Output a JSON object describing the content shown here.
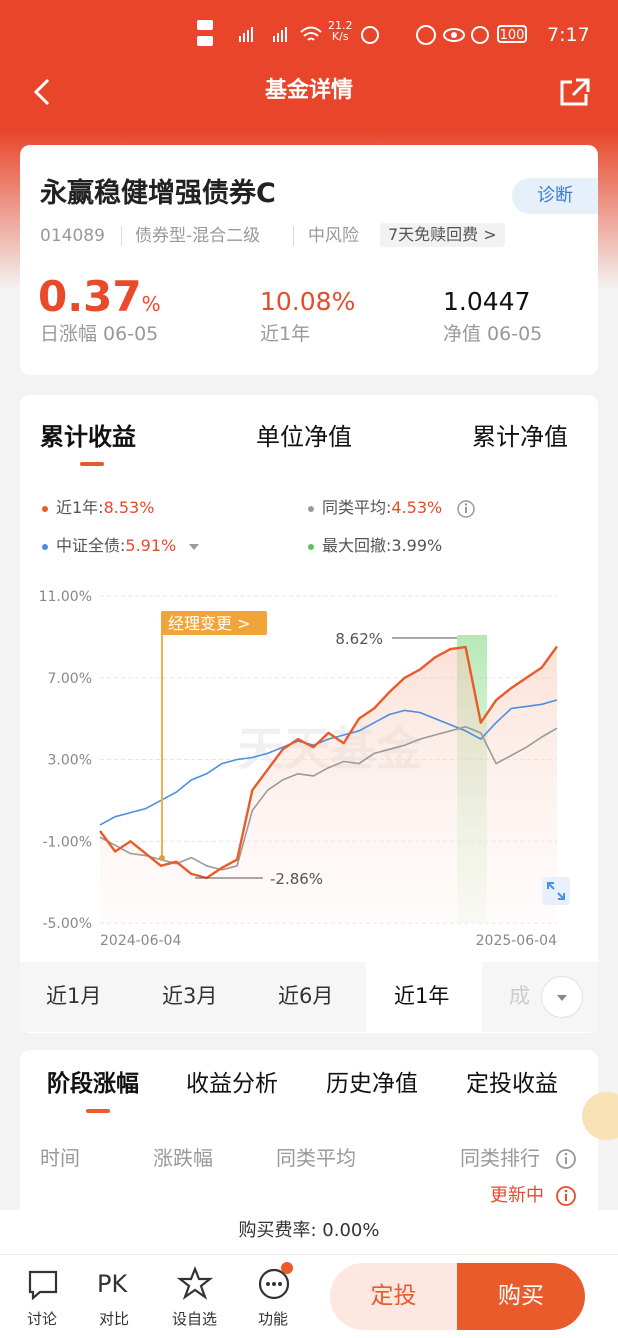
{
  "status_bar": {
    "speed": "21.2",
    "speed_unit": "K/s",
    "battery": "100",
    "time": "7:17"
  },
  "header": {
    "title": "基金详情"
  },
  "fund": {
    "name": "永赢稳健增强债券C",
    "diagnose": "诊断",
    "code": "014089",
    "category": "债券型-混合二级",
    "risk": "中风险",
    "fee_tag": "7天免赎回费 >",
    "daily_change": "0.37",
    "daily_change_unit": "%",
    "daily_label": "日涨幅 06-05",
    "year_return": "10.08%",
    "year_label": "近1年",
    "nav": "1.0447",
    "nav_label": "净值 06-05"
  },
  "chart_tabs": [
    "累计收益",
    "单位净值",
    "累计净值"
  ],
  "chart_data": {
    "type": "line",
    "watermark": "天天基金",
    "categories": [
      "2024-06-04",
      null,
      null,
      null,
      null,
      null,
      null,
      null,
      null,
      null,
      null,
      null,
      null,
      null,
      null,
      null,
      null,
      null,
      null,
      null,
      null,
      null,
      null,
      null,
      null,
      null,
      null,
      null,
      null,
      null,
      "2025-06-04"
    ],
    "series": [
      {
        "name": "近1年:",
        "summary": "8.53%",
        "color": "#ea5b2c",
        "values": [
          -0.5,
          -1.5,
          -1.0,
          -1.6,
          -2.2,
          -2.0,
          -2.6,
          -2.8,
          -2.3,
          -1.9,
          1.5,
          2.5,
          3.5,
          4.0,
          3.6,
          4.3,
          3.8,
          5.0,
          5.5,
          6.3,
          7.0,
          7.4,
          8.0,
          8.4,
          8.5,
          4.8,
          5.9,
          6.5,
          7.0,
          7.5,
          8.53
        ]
      },
      {
        "name": "同类平均:",
        "summary": "4.53%",
        "color": "#9a9a9a",
        "values": [
          -0.8,
          -1.2,
          -1.6,
          -1.7,
          -1.9,
          -2.1,
          -1.8,
          -2.2,
          -2.4,
          -2.2,
          0.5,
          1.5,
          2.0,
          2.3,
          2.2,
          2.6,
          2.9,
          2.8,
          3.3,
          3.5,
          3.7,
          4.0,
          4.2,
          4.4,
          4.6,
          4.3,
          2.8,
          3.2,
          3.6,
          4.1,
          4.53
        ]
      },
      {
        "name": "中证全债:",
        "summary": "5.91%",
        "color": "#4b8fe0",
        "values": [
          -0.2,
          0.2,
          0.4,
          0.6,
          1.0,
          1.4,
          2.0,
          2.3,
          2.8,
          3.0,
          3.1,
          3.3,
          3.6,
          3.9,
          3.7,
          4.0,
          4.2,
          4.4,
          4.8,
          5.2,
          5.4,
          5.3,
          5.0,
          4.7,
          4.4,
          4.0,
          4.8,
          5.5,
          5.6,
          5.7,
          5.91
        ]
      }
    ],
    "max_drawdown": {
      "name": "最大回撤:",
      "summary": "3.99%",
      "color": "#5cc15c"
    },
    "manager_change": "经理变更 >",
    "annotations": {
      "high": "8.62%",
      "low": "-2.86%"
    },
    "ylim": [
      -5,
      11
    ],
    "yticks": [
      {
        "value": 11,
        "label": "11.00%"
      },
      {
        "value": 7,
        "label": "7.00%"
      },
      {
        "value": 3,
        "label": "3.00%"
      },
      {
        "value": -1,
        "label": "-1.00%"
      },
      {
        "value": -5,
        "label": "-5.00%"
      }
    ],
    "grid": true
  },
  "range_tabs": [
    "近1月",
    "近3月",
    "近6月",
    "近1年",
    "成"
  ],
  "section_tabs": [
    "阶段涨幅",
    "收益分析",
    "历史净值",
    "定投收益"
  ],
  "table_headers": [
    "时间",
    "涨跌幅",
    "同类平均",
    "同类排行"
  ],
  "update_status": "更新中",
  "footer": {
    "fee": "购买费率: 0.00%"
  },
  "nav": {
    "discuss": "讨论",
    "pk": "PK",
    "compare": "对比",
    "watch": "设自选",
    "more": "功能"
  },
  "buttons": {
    "plan": "定投",
    "buy": "购买"
  }
}
